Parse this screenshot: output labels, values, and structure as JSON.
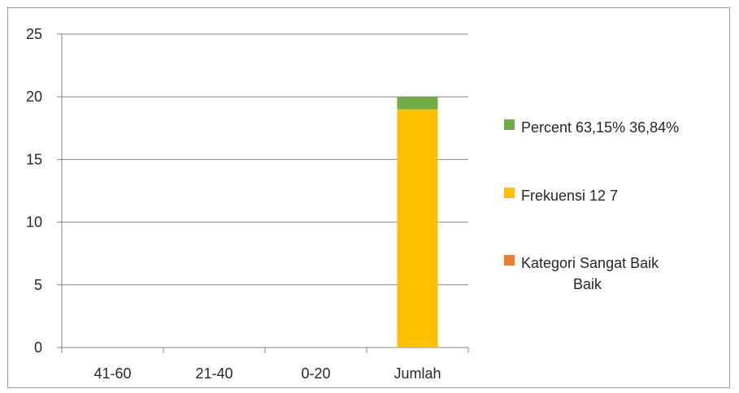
{
  "chart_data": {
    "type": "bar",
    "stacked": true,
    "categories": [
      "41-60",
      "21-40",
      "0-20",
      "Jumlah"
    ],
    "series": [
      {
        "name": "Kategori  Sangat Baik Baik",
        "legend_lines": [
          "Kategori  Sangat Baik",
          "Baik"
        ],
        "color": "#ED7D31",
        "values": [
          0,
          0,
          0,
          0
        ]
      },
      {
        "name": "Frekuensi  12 7",
        "legend_lines": [
          "Frekuensi  12 7"
        ],
        "color": "#FFC000",
        "values": [
          0,
          0,
          0,
          19
        ]
      },
      {
        "name": "Percent 63,15% 36,84%",
        "legend_lines": [
          "Percent 63,15% 36,84%"
        ],
        "color": "#70AD47",
        "values": [
          0,
          0,
          0,
          1
        ]
      }
    ],
    "yticks": [
      "0",
      "5",
      "10",
      "15",
      "20",
      "25"
    ],
    "ylim": [
      0,
      25
    ],
    "grid": true,
    "legend_position": "right",
    "axis_color": "#868686",
    "grid_color": "#868686",
    "title": "",
    "xlabel": "",
    "ylabel": ""
  }
}
